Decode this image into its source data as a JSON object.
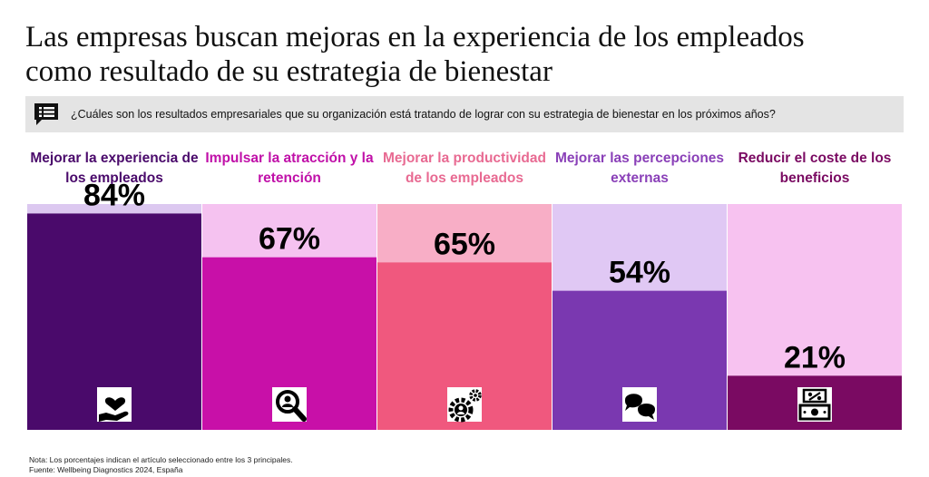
{
  "title_line1": "Las empresas buscan mejoras en la experiencia de los empleados",
  "title_line2": "como resultado de su estrategia de bienestar",
  "question": "¿Cuáles son los resultados empresariales que su organización está tratando de lograr con su estrategia de bienestar en los próximos años?",
  "colors": {
    "question_bar_bg": "#e4e4e4",
    "question_icon": "#111111"
  },
  "chart_data": {
    "type": "bar",
    "categories": [
      "Mejorar la experiencia de los empleados",
      "Impulsar la atracción y la retención",
      "Mejorar la productividad de los empleados",
      "Mejorar las percepciones externas",
      "Reducir el coste de los beneficios"
    ],
    "values": [
      84,
      67,
      65,
      54,
      21
    ],
    "value_labels": [
      "84%",
      "67%",
      "65%",
      "54%",
      "21%"
    ],
    "ylim": [
      0,
      100
    ],
    "label_colors": [
      "#4a0a6b",
      "#c010a8",
      "#e86a92",
      "#8a40b8",
      "#7a0a62"
    ],
    "fill_colors": [
      "#4a0a6b",
      "#c810a8",
      "#f0587e",
      "#7a38b0",
      "#7a0a62"
    ],
    "background_colors": [
      "#dcc8f0",
      "#f5c2f0",
      "#f8aec6",
      "#e0c8f4",
      "#f7c2f0"
    ],
    "icons": [
      "heart-hand-icon",
      "magnifier-person-icon",
      "gears-person-icon",
      "speech-bubbles-icon",
      "money-percent-icon"
    ],
    "grid": false,
    "legend": "none"
  },
  "note": "Nota: Los porcentajes indican el artículo seleccionado entre los 3 principales.",
  "source": "Fuente: Wellbeing Diagnostics 2024, España"
}
